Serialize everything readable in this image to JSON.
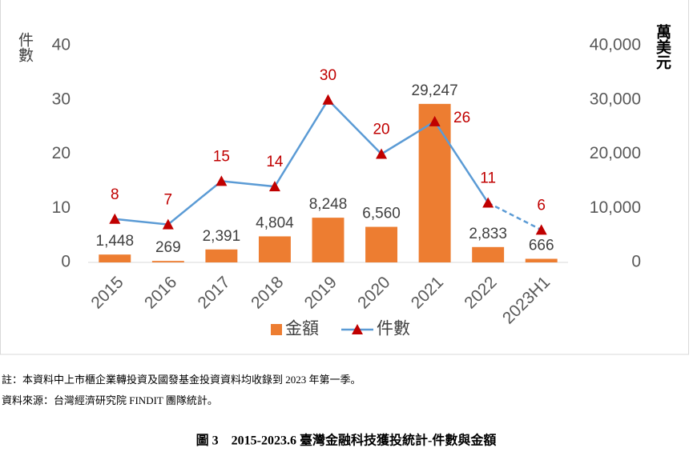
{
  "chart_data": {
    "type": "bar-line",
    "y_title": "件數",
    "y2_title": "萬美元",
    "categories": [
      "2015",
      "2016",
      "2017",
      "2018",
      "2019",
      "2020",
      "2021",
      "2022",
      "2023H1"
    ],
    "series": [
      {
        "name": "金額",
        "type": "bar",
        "axis": "y2",
        "color": "#ED7D31",
        "values": [
          1448,
          269,
          2391,
          4804,
          8248,
          6560,
          29247,
          2833,
          666
        ],
        "value_labels": [
          "1,448",
          "269",
          "2,391",
          "4,804",
          "8,248",
          "6,560",
          "29,247",
          "2,833",
          "666"
        ]
      },
      {
        "name": "件數",
        "type": "line",
        "axis": "y",
        "color": "#5B9BD5",
        "marker_color": "#C00000",
        "label_color": "#C00000",
        "dash_last_segment": true,
        "values": [
          8,
          7,
          15,
          14,
          30,
          20,
          26,
          11,
          6
        ]
      }
    ],
    "ylim": [
      0,
      40
    ],
    "yticks": [
      0,
      10,
      20,
      30,
      40
    ],
    "y2lim": [
      0,
      40000
    ],
    "y2ticks": [
      0,
      {
        "value": 10000,
        "label": "10,000"
      },
      {
        "value": 20000,
        "label": "20,000"
      },
      {
        "value": 30000,
        "label": "30,000"
      },
      {
        "value": 40000,
        "label": "40,000"
      }
    ]
  },
  "notes": [
    "註：本資料中上市櫃企業轉投資及國發基金投資資料均收錄到 2023 年第一季。",
    "資料來源：台灣經濟研究院 FINDIT 團隊統計。"
  ],
  "caption": "圖 3　2015-2023.6 臺灣金融科技獲投統計-件數與金額"
}
